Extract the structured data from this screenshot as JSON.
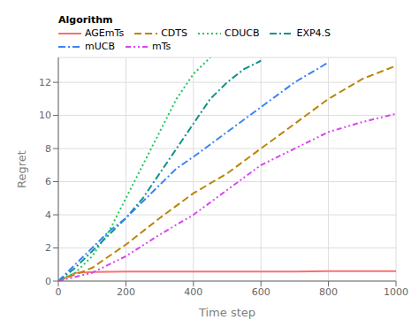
{
  "chart_data": {
    "type": "line",
    "xlabel": "Time step",
    "ylabel": "Regret",
    "xlim": [
      0,
      1000
    ],
    "ylim": [
      0,
      13.5
    ],
    "xticks": [
      0,
      200,
      400,
      600,
      800,
      1000
    ],
    "yticks": [
      0,
      2,
      4,
      6,
      8,
      10,
      12
    ],
    "grid": true,
    "legend": "upper left",
    "legend_title": "Algorithm",
    "series": [
      {
        "name": "AGEmTs",
        "color": "#f87171",
        "line_style": "solid",
        "x": [
          0,
          50,
          100,
          200,
          300,
          400,
          500,
          600,
          700,
          800,
          900,
          1000
        ],
        "values": [
          0,
          0.5,
          0.55,
          0.57,
          0.58,
          0.58,
          0.58,
          0.58,
          0.58,
          0.6,
          0.6,
          0.6
        ]
      },
      {
        "name": "CDTS",
        "color": "#b8860b",
        "line_style": "dashed",
        "x": [
          0,
          100,
          200,
          300,
          400,
          500,
          600,
          700,
          800,
          900,
          1000
        ],
        "values": [
          0,
          0.8,
          2.2,
          3.8,
          5.3,
          6.5,
          8.0,
          9.5,
          11.0,
          12.2,
          13.0
        ]
      },
      {
        "name": "CDUCB",
        "color": "#22c55e",
        "line_style": "dotted",
        "x": [
          0,
          50,
          100,
          150,
          200,
          250,
          300,
          350,
          400,
          450
        ],
        "values": [
          0,
          0.5,
          1.5,
          3.0,
          5.0,
          7.0,
          9.0,
          11.0,
          12.5,
          13.5
        ]
      },
      {
        "name": "EXP4.S",
        "color": "#0d9488",
        "line_style": "dashdot",
        "x": [
          0,
          50,
          100,
          150,
          200,
          250,
          300,
          350,
          400,
          450,
          500,
          550,
          600
        ],
        "values": [
          0,
          0.8,
          1.8,
          2.8,
          3.8,
          5.0,
          6.5,
          8.0,
          9.5,
          11.0,
          12.0,
          12.8,
          13.3
        ]
      },
      {
        "name": "mUCB",
        "color": "#3b82f6",
        "line_style": "dashdot",
        "x": [
          0,
          50,
          100,
          150,
          200,
          250,
          300,
          350,
          400,
          500,
          600,
          700,
          800
        ],
        "values": [
          0,
          1.0,
          2.0,
          3.0,
          3.8,
          4.8,
          5.8,
          6.8,
          7.5,
          9.0,
          10.5,
          12.0,
          13.2
        ]
      },
      {
        "name": "mTs",
        "color": "#d946ef",
        "line_style": "dashdotdot",
        "x": [
          0,
          100,
          200,
          300,
          400,
          500,
          600,
          700,
          800,
          900,
          1000
        ],
        "values": [
          0,
          0.5,
          1.5,
          2.8,
          4.0,
          5.5,
          7.0,
          8.0,
          9.0,
          9.6,
          10.1
        ]
      }
    ]
  }
}
